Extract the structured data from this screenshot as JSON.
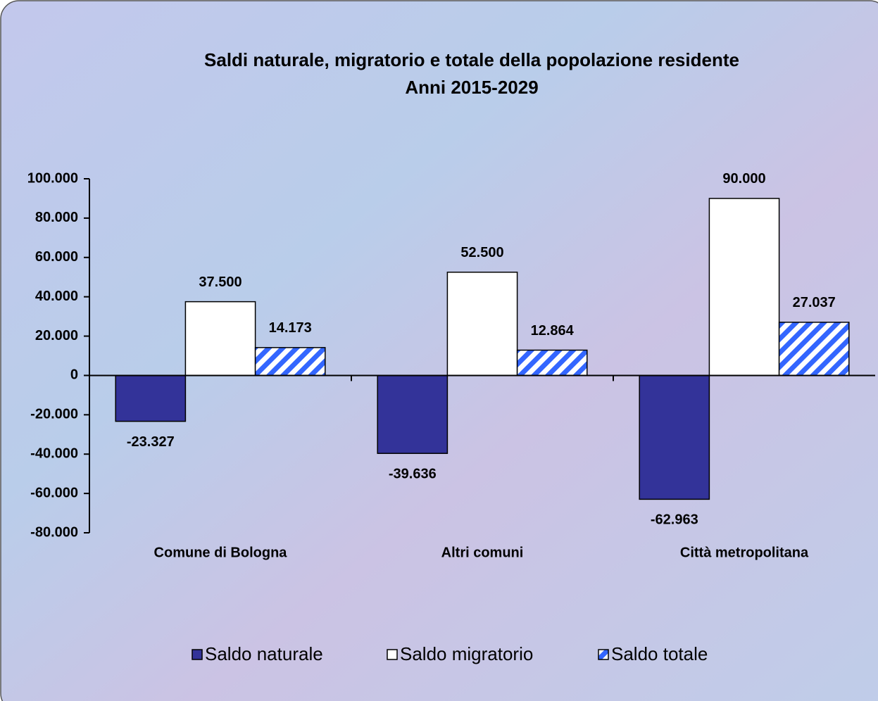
{
  "chart_data": {
    "type": "bar",
    "title": "Saldi naturale, migratorio e totale della popolazione residente",
    "subtitle": "Anni 2015-2029",
    "categories": [
      "Comune di Bologna",
      "Altri comuni",
      "Città metropolitana"
    ],
    "series": [
      {
        "name": "Saldo naturale",
        "color": "#333399",
        "values": [
          -23327,
          -39636,
          -62963
        ],
        "value_labels": [
          "-23.327",
          "-39.636",
          "-62.963"
        ]
      },
      {
        "name": "Saldo migratorio",
        "color": "#ffffff",
        "values": [
          37500,
          52500,
          90000
        ],
        "value_labels": [
          "37.500",
          "52.500",
          "90.000"
        ]
      },
      {
        "name": "Saldo totale",
        "color": "#3366ff",
        "pattern": "hatch",
        "values": [
          14173,
          12864,
          27037
        ],
        "value_labels": [
          "14.173",
          "12.864",
          "27.037"
        ]
      }
    ],
    "ylim": [
      -80000,
      100000
    ],
    "yticks": [
      {
        "value": -80000,
        "label": "-80.000"
      },
      {
        "value": -60000,
        "label": "-60.000"
      },
      {
        "value": -40000,
        "label": "-40.000"
      },
      {
        "value": -20000,
        "label": "-20.000"
      },
      0,
      {
        "value": 20000,
        "label": "20.000"
      },
      {
        "value": 40000,
        "label": "40.000"
      },
      {
        "value": 60000,
        "label": "60.000"
      },
      {
        "value": 80000,
        "label": "80.000"
      },
      {
        "value": 100000,
        "label": "100.000"
      }
    ],
    "legend": "bottom"
  }
}
